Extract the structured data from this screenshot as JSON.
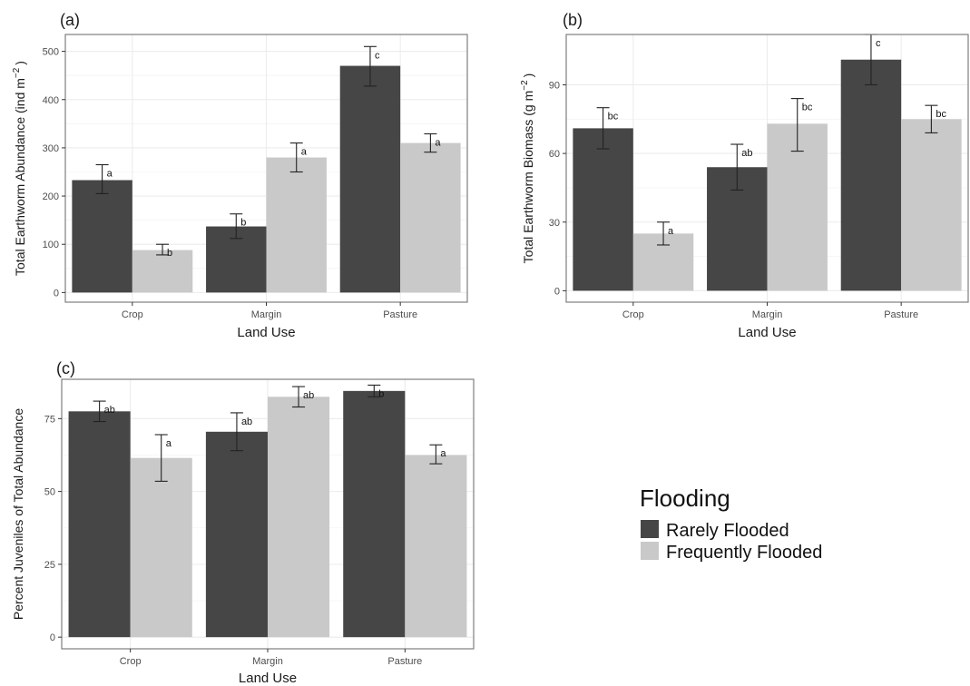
{
  "colors": {
    "rarely": "#464646",
    "frequently": "#c9c9c9",
    "grid": "#ececec",
    "border": "#7f7f7f",
    "text": "#1a1a1a",
    "ticktext": "#4d4d4d"
  },
  "legend": {
    "title": "Flooding",
    "items": [
      {
        "label": "Rarely Flooded",
        "color": "#464646"
      },
      {
        "label": "Frequently Flooded",
        "color": "#c9c9c9"
      }
    ]
  },
  "chart_data": [
    {
      "type": "bar",
      "panel_label": "(a)",
      "title": "",
      "xlabel": "Land Use",
      "ylabel_main": "Total Earthworm Abundance (ind  m",
      "ylabel_sup": "−2",
      "ylabel_tail": ")",
      "categories": [
        "Crop",
        "Margin",
        "Pasture"
      ],
      "ylim": [
        -20,
        535
      ],
      "yticks": [
        0,
        100,
        200,
        300,
        400,
        500
      ],
      "series": [
        {
          "name": "Rarely Flooded",
          "values": [
            233,
            137,
            470
          ],
          "err_low": [
            205,
            112,
            428
          ],
          "err_high": [
            265,
            163,
            510
          ],
          "letters": [
            "a",
            "b",
            "c"
          ]
        },
        {
          "name": "Frequently Flooded",
          "values": [
            88,
            280,
            310
          ],
          "err_low": [
            78,
            250,
            291
          ],
          "err_high": [
            100,
            310,
            329
          ],
          "letters": [
            "b",
            "a",
            "a"
          ]
        }
      ]
    },
    {
      "type": "bar",
      "panel_label": "(b)",
      "title": "",
      "xlabel": "Land Use",
      "ylabel_main": "Total Earthworm Biomass (g m",
      "ylabel_sup": "−2",
      "ylabel_tail": ")",
      "categories": [
        "Crop",
        "Margin",
        "Pasture"
      ],
      "ylim": [
        -5,
        112
      ],
      "yticks": [
        0,
        30,
        60,
        90
      ],
      "series": [
        {
          "name": "Rarely Flooded",
          "values": [
            71,
            54,
            101
          ],
          "err_low": [
            62,
            44,
            90
          ],
          "err_high": [
            80,
            64,
            112
          ],
          "letters": [
            "bc",
            "ab",
            "c"
          ]
        },
        {
          "name": "Frequently Flooded",
          "values": [
            25,
            73,
            75
          ],
          "err_low": [
            20,
            61,
            69
          ],
          "err_high": [
            30,
            84,
            81
          ],
          "letters": [
            "a",
            "bc",
            "bc"
          ]
        }
      ]
    },
    {
      "type": "bar",
      "panel_label": "(c)",
      "title": "",
      "xlabel": "Land Use",
      "ylabel_main": "Percent Juveniles of Total Abundance",
      "ylabel_sup": "",
      "ylabel_tail": "",
      "categories": [
        "Crop",
        "Margin",
        "Pasture"
      ],
      "ylim": [
        -4,
        88.5
      ],
      "yticks": [
        0,
        25,
        50,
        75
      ],
      "series": [
        {
          "name": "Rarely Flooded",
          "values": [
            77.5,
            70.5,
            84.5
          ],
          "err_low": [
            74,
            64,
            82.5
          ],
          "err_high": [
            81,
            77,
            86.5
          ],
          "letters": [
            "ab",
            "ab",
            "b"
          ]
        },
        {
          "name": "Frequently Flooded",
          "values": [
            61.5,
            82.5,
            62.5
          ],
          "err_low": [
            53.5,
            79,
            59.5
          ],
          "err_high": [
            69.5,
            86,
            66
          ],
          "letters": [
            "a",
            "ab",
            "a"
          ]
        }
      ]
    }
  ]
}
